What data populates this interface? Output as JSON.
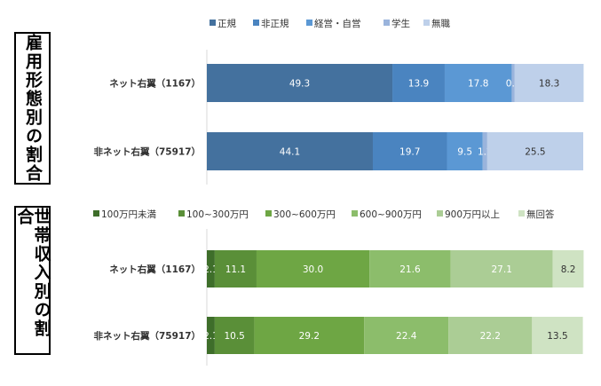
{
  "panels": [
    {
      "title": "雇用形態別の割合",
      "chart_data": {
        "type": "bar",
        "stacked": true,
        "orientation": "horizontal",
        "unit": "%",
        "categories": [
          "ネット右翼（1167）",
          "非ネット右翼（75917）"
        ],
        "series": [
          {
            "name": "正規",
            "color": "#44719e",
            "values": [
              49.3,
              44.1
            ]
          },
          {
            "name": "非正規",
            "color": "#4a84c0",
            "values": [
              13.9,
              19.7
            ]
          },
          {
            "name": "経営・自営",
            "color": "#5b98d4",
            "values": [
              17.8,
              9.5
            ]
          },
          {
            "name": "学生",
            "color": "#9ab4dc",
            "values": [
              0.8,
              1.2
            ]
          },
          {
            "name": "無職",
            "color": "#bed0ea",
            "values": [
              18.3,
              25.5
            ]
          }
        ],
        "xlim": [
          0,
          100
        ],
        "legend_position": "top"
      }
    },
    {
      "title": "世帯収入別の割合",
      "chart_data": {
        "type": "bar",
        "stacked": true,
        "orientation": "horizontal",
        "unit": "%",
        "categories": [
          "ネット右翼（1167）",
          "非ネット右翼（75917）"
        ],
        "series": [
          {
            "name": "100万円未満",
            "color": "#3e6e2a",
            "values": [
              2.1,
              2.1
            ]
          },
          {
            "name": "100~300万円",
            "color": "#5a8f38",
            "values": [
              11.1,
              10.5
            ]
          },
          {
            "name": "300~600万円",
            "color": "#6ea644",
            "values": [
              30.0,
              29.2
            ]
          },
          {
            "name": "600~900万円",
            "color": "#8cbd6b",
            "values": [
              21.6,
              22.4
            ]
          },
          {
            "name": "900万円以上",
            "color": "#abcd95",
            "values": [
              27.1,
              22.2
            ]
          },
          {
            "name": "無回答",
            "color": "#cfe3c3",
            "values": [
              8.2,
              13.5
            ]
          }
        ],
        "xlim": [
          0,
          100
        ],
        "legend_position": "top"
      }
    }
  ]
}
